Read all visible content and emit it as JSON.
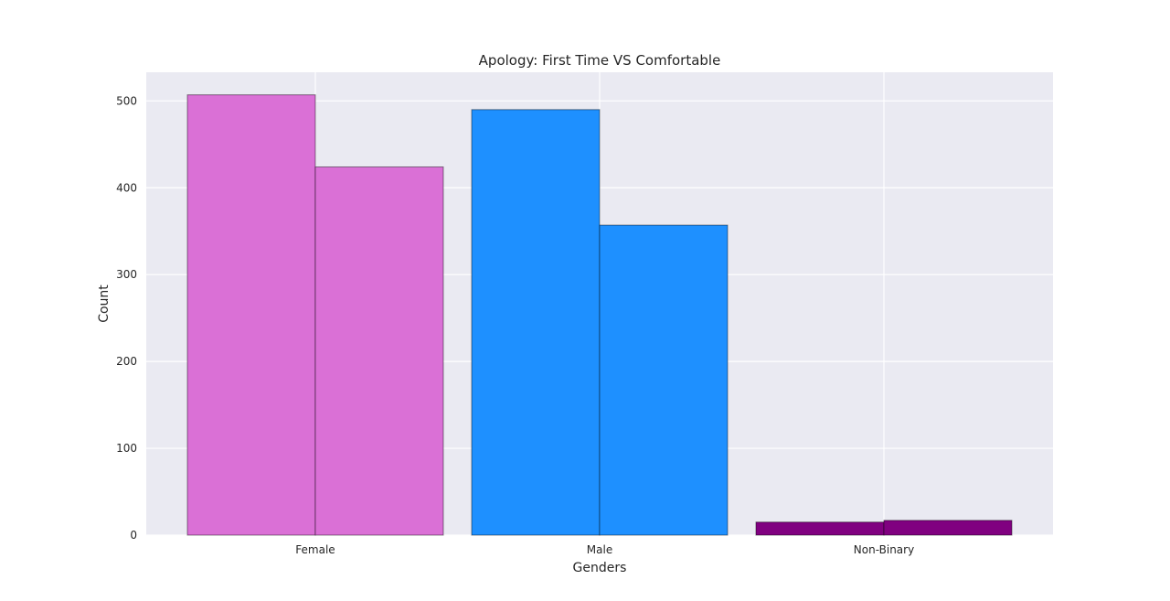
{
  "chart_data": {
    "type": "bar",
    "title": "Apology: First Time VS Comfortable",
    "xlabel": "Genders",
    "ylabel": "Count",
    "categories": [
      "Female",
      "Male",
      "Non-Binary"
    ],
    "series": [
      {
        "values": [
          507,
          490,
          15
        ],
        "colors": [
          "#da70d6",
          "#1e90ff",
          "#800080"
        ]
      },
      {
        "values": [
          424,
          357,
          17
        ],
        "colors": [
          "#da70d6",
          "#1e90ff",
          "#800080"
        ]
      }
    ],
    "ylim": [
      0,
      533
    ],
    "yticks": [
      0,
      100,
      200,
      300,
      400,
      500
    ],
    "grid": true,
    "legend": "none",
    "style": {
      "plot_background": "#eaeaf2",
      "grid_color": "#ffffff"
    }
  }
}
